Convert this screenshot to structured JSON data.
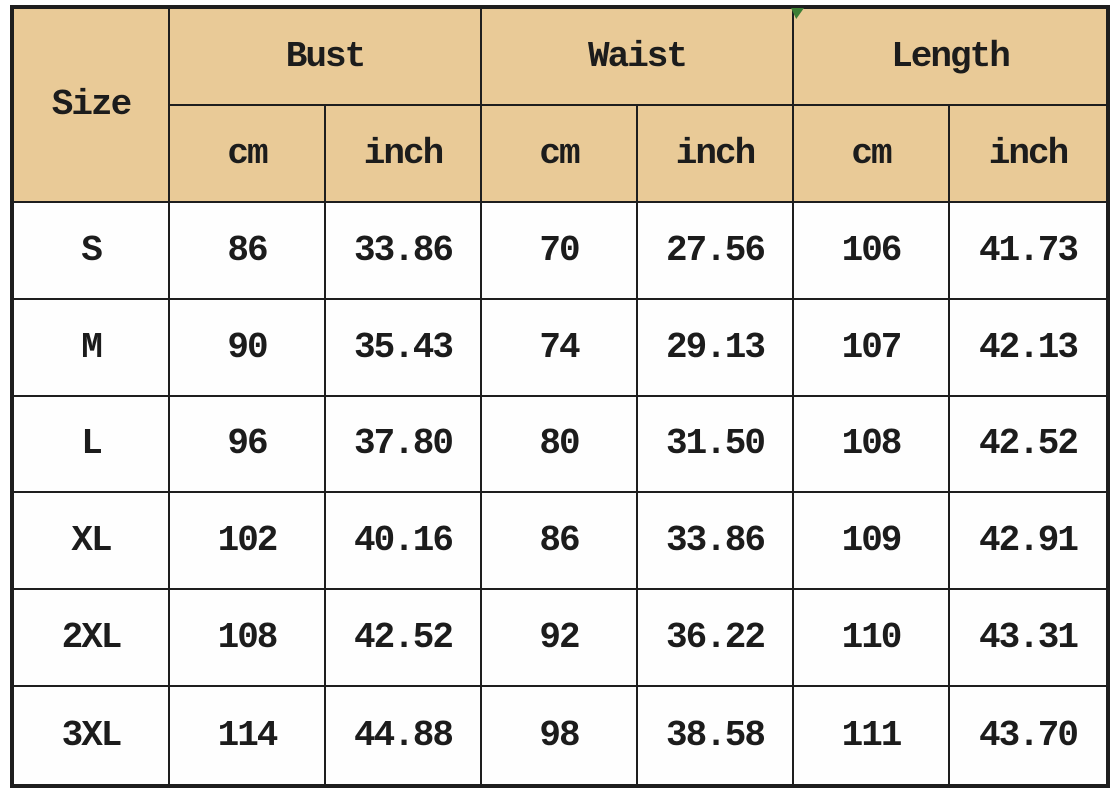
{
  "colors": {
    "header_bg": "#e9ca97",
    "grid_line": "#1e1e1e",
    "cell_bg": "#fefefe",
    "text": "#1c1c1c",
    "corner_marker_green": "#3c7e35"
  },
  "table": {
    "row_header_label": "Size",
    "column_groups": [
      {
        "label": "Bust"
      },
      {
        "label": "Waist"
      },
      {
        "label": "Length"
      }
    ],
    "unit_labels": [
      "cm",
      "inch",
      "cm",
      "inch",
      "cm",
      "inch"
    ],
    "rows": [
      {
        "size": "S",
        "values": [
          "86",
          "33.86",
          "70",
          "27.56",
          "106",
          "41.73"
        ]
      },
      {
        "size": "M",
        "values": [
          "90",
          "35.43",
          "74",
          "29.13",
          "107",
          "42.13"
        ]
      },
      {
        "size": "L",
        "values": [
          "96",
          "37.80",
          "80",
          "31.50",
          "108",
          "42.52"
        ]
      },
      {
        "size": "XL",
        "values": [
          "102",
          "40.16",
          "86",
          "33.86",
          "109",
          "42.91"
        ]
      },
      {
        "size": "2XL",
        "values": [
          "108",
          "42.52",
          "92",
          "36.22",
          "110",
          "43.31"
        ]
      },
      {
        "size": "3XL",
        "values": [
          "114",
          "44.88",
          "98",
          "38.58",
          "111",
          "43.70"
        ]
      }
    ]
  },
  "chart_data": {
    "type": "table",
    "columns": [
      "Size",
      "Bust cm",
      "Bust inch",
      "Waist cm",
      "Waist inch",
      "Length cm",
      "Length inch"
    ],
    "rows": [
      [
        "S",
        86,
        33.86,
        70,
        27.56,
        106,
        41.73
      ],
      [
        "M",
        90,
        35.43,
        74,
        29.13,
        107,
        42.13
      ],
      [
        "L",
        96,
        37.8,
        80,
        31.5,
        108,
        42.52
      ],
      [
        "XL",
        102,
        40.16,
        86,
        33.86,
        109,
        42.91
      ],
      [
        "2XL",
        108,
        42.52,
        92,
        36.22,
        110,
        43.31
      ],
      [
        "3XL",
        114,
        44.88,
        98,
        38.58,
        111,
        43.7
      ]
    ]
  }
}
